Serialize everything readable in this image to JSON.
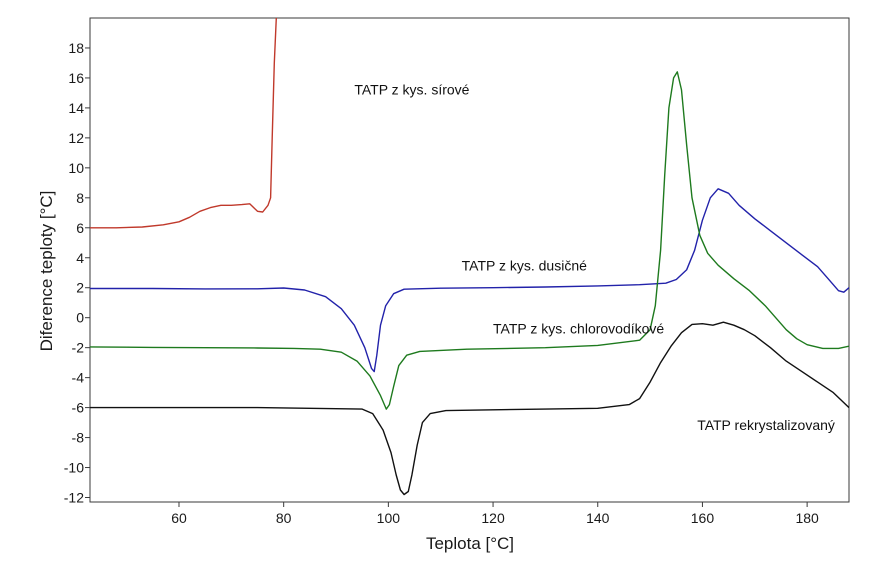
{
  "chart_data": {
    "type": "line",
    "title": "",
    "xlabel": "Teplota [°C]",
    "ylabel": "Diference teploty [°C]",
    "xlim": [
      43,
      188
    ],
    "ylim": [
      -12.3,
      20.0
    ],
    "x_ticks": [
      60,
      80,
      100,
      120,
      140,
      160,
      180
    ],
    "y_ticks": [
      -12,
      -10,
      -8,
      -6,
      -4,
      -2,
      0,
      2,
      4,
      6,
      8,
      10,
      12,
      14,
      16,
      18
    ],
    "grid": false,
    "series": [
      {
        "name": "TATP z kys. sírové",
        "color": "#c0392b",
        "points": [
          [
            43,
            6.0
          ],
          [
            48,
            6.0
          ],
          [
            53,
            6.05
          ],
          [
            57,
            6.2
          ],
          [
            60,
            6.4
          ],
          [
            62,
            6.7
          ],
          [
            64,
            7.1
          ],
          [
            66,
            7.35
          ],
          [
            68,
            7.5
          ],
          [
            70,
            7.5
          ],
          [
            72,
            7.55
          ],
          [
            73.5,
            7.6
          ],
          [
            75,
            7.1
          ],
          [
            76,
            7.05
          ],
          [
            77,
            7.5
          ],
          [
            77.5,
            8.0
          ],
          [
            77.8,
            12.0
          ],
          [
            78.2,
            17.0
          ],
          [
            78.6,
            20.0
          ]
        ]
      },
      {
        "name": "TATP z kys. dusičné",
        "color": "#2222aa",
        "points": [
          [
            43,
            1.95
          ],
          [
            55,
            1.95
          ],
          [
            65,
            1.92
          ],
          [
            75,
            1.93
          ],
          [
            80,
            1.98
          ],
          [
            84,
            1.85
          ],
          [
            88,
            1.4
          ],
          [
            91,
            0.6
          ],
          [
            93.5,
            -0.5
          ],
          [
            95.5,
            -2.0
          ],
          [
            96.8,
            -3.4
          ],
          [
            97.3,
            -3.6
          ],
          [
            97.8,
            -2.5
          ],
          [
            98.5,
            -0.5
          ],
          [
            99.5,
            0.8
          ],
          [
            101,
            1.6
          ],
          [
            103,
            1.9
          ],
          [
            110,
            1.97
          ],
          [
            120,
            2.0
          ],
          [
            130,
            2.05
          ],
          [
            140,
            2.12
          ],
          [
            148,
            2.2
          ],
          [
            153,
            2.3
          ],
          [
            155,
            2.55
          ],
          [
            157,
            3.2
          ],
          [
            158.5,
            4.5
          ],
          [
            160,
            6.5
          ],
          [
            161.5,
            8.0
          ],
          [
            163,
            8.6
          ],
          [
            165,
            8.3
          ],
          [
            167,
            7.5
          ],
          [
            170,
            6.6
          ],
          [
            173,
            5.8
          ],
          [
            176,
            5.0
          ],
          [
            179,
            4.2
          ],
          [
            182,
            3.4
          ],
          [
            184,
            2.6
          ],
          [
            186,
            1.8
          ],
          [
            187,
            1.7
          ],
          [
            188,
            2.0
          ]
        ]
      },
      {
        "name": "TATP z kys. chlorovodíkové",
        "color": "#1e7a1e",
        "points": [
          [
            43,
            -1.95
          ],
          [
            55,
            -1.98
          ],
          [
            65,
            -2.0
          ],
          [
            75,
            -2.02
          ],
          [
            82,
            -2.05
          ],
          [
            87,
            -2.1
          ],
          [
            91,
            -2.3
          ],
          [
            94,
            -2.9
          ],
          [
            96.5,
            -3.9
          ],
          [
            98.5,
            -5.2
          ],
          [
            99.6,
            -6.1
          ],
          [
            100.2,
            -5.8
          ],
          [
            101,
            -4.6
          ],
          [
            102,
            -3.2
          ],
          [
            103.5,
            -2.5
          ],
          [
            106,
            -2.25
          ],
          [
            115,
            -2.1
          ],
          [
            130,
            -2.0
          ],
          [
            140,
            -1.85
          ],
          [
            148,
            -1.5
          ],
          [
            150,
            -0.8
          ],
          [
            151,
            0.8
          ],
          [
            152,
            4.5
          ],
          [
            152.8,
            9.5
          ],
          [
            153.6,
            14.0
          ],
          [
            154.5,
            16.0
          ],
          [
            155.2,
            16.4
          ],
          [
            156,
            15.2
          ],
          [
            157,
            11.5
          ],
          [
            158,
            8.0
          ],
          [
            159.5,
            5.5
          ],
          [
            161,
            4.3
          ],
          [
            163,
            3.5
          ],
          [
            166,
            2.6
          ],
          [
            169,
            1.8
          ],
          [
            172,
            0.8
          ],
          [
            174,
            0.0
          ],
          [
            176,
            -0.8
          ],
          [
            178,
            -1.4
          ],
          [
            180,
            -1.8
          ],
          [
            183,
            -2.05
          ],
          [
            186,
            -2.05
          ],
          [
            188,
            -1.9
          ]
        ]
      },
      {
        "name": "TATP rekrystalizovaný",
        "color": "#111111",
        "points": [
          [
            43,
            -6.0
          ],
          [
            60,
            -6.0
          ],
          [
            75,
            -6.0
          ],
          [
            85,
            -6.05
          ],
          [
            95,
            -6.1
          ],
          [
            97,
            -6.4
          ],
          [
            99,
            -7.5
          ],
          [
            100.5,
            -9.0
          ],
          [
            101.5,
            -10.5
          ],
          [
            102.3,
            -11.5
          ],
          [
            103,
            -11.8
          ],
          [
            103.8,
            -11.6
          ],
          [
            104.5,
            -10.5
          ],
          [
            105.5,
            -8.5
          ],
          [
            106.5,
            -7.0
          ],
          [
            108,
            -6.4
          ],
          [
            111,
            -6.2
          ],
          [
            120,
            -6.15
          ],
          [
            130,
            -6.1
          ],
          [
            140,
            -6.05
          ],
          [
            146,
            -5.8
          ],
          [
            148,
            -5.4
          ],
          [
            150,
            -4.3
          ],
          [
            152,
            -3.0
          ],
          [
            154,
            -1.9
          ],
          [
            156,
            -1.0
          ],
          [
            158,
            -0.45
          ],
          [
            160,
            -0.4
          ],
          [
            162,
            -0.5
          ],
          [
            164,
            -0.3
          ],
          [
            166,
            -0.5
          ],
          [
            168,
            -0.8
          ],
          [
            170,
            -1.2
          ],
          [
            173,
            -2.0
          ],
          [
            176,
            -2.9
          ],
          [
            179,
            -3.6
          ],
          [
            182,
            -4.3
          ],
          [
            185,
            -5.0
          ],
          [
            188,
            -6.0
          ]
        ]
      }
    ],
    "annotations": [
      {
        "text": "TATP z kys. sírové",
        "x": 93.5,
        "y": 14.9,
        "series": 0
      },
      {
        "text": "TATP z kys. dusičné",
        "x": 114,
        "y": 3.15,
        "series": 1
      },
      {
        "text": "TATP z kys. chlorovodíkové",
        "x": 120,
        "y": -1.05,
        "series": 2
      },
      {
        "text": "TATP rekrystalizovaný",
        "x": 159,
        "y": -7.5,
        "series": 3
      }
    ]
  }
}
